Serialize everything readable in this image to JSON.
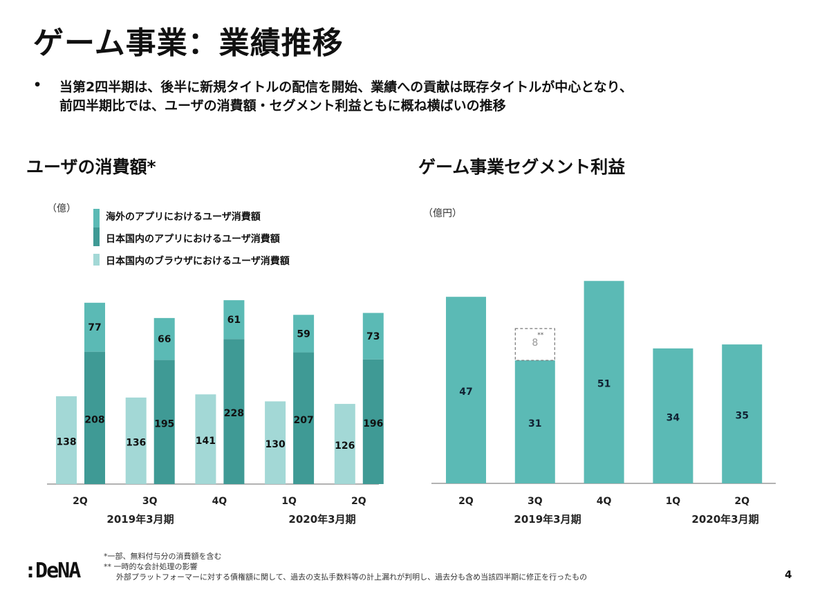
{
  "title": "ゲーム事業：業績推移",
  "bullet_symbol": "•",
  "summary_lines": [
    "当第2四半期は、後半に新規タイトルの配信を開始、業績への貢献は既存タイトルが中心となり、",
    "前四半期比では、ユーザの消費額・セグメント利益ともに概ね横ばいの推移"
  ],
  "colors": {
    "overseas_app": "#5bbab5",
    "domestic_app": "#3f9a95",
    "domestic_browser": "#a3d8d6",
    "profit": "#5bbab5"
  },
  "chart_data": [
    {
      "type": "bar",
      "title": "ユーザの消費額*",
      "unit": "（億）",
      "categories": [
        "2Q",
        "3Q",
        "4Q",
        "1Q",
        "2Q"
      ],
      "period_labels": [
        "2019年3月期",
        "2020年3月期"
      ],
      "legend": [
        "海外のアプリにおけるユーザ消費額",
        "日本国内のアプリにおけるユーザ消費額",
        "日本国内のブラウザにおけるユーザ消費額"
      ],
      "legend_placement": "top",
      "series": [
        {
          "name": "日本国内のブラウザにおけるユーザ消費額",
          "values": [
            138,
            136,
            141,
            130,
            126
          ]
        },
        {
          "name": "日本国内のアプリにおけるユーザ消費額",
          "values": [
            208,
            195,
            228,
            207,
            196
          ]
        },
        {
          "name": "海外のアプリにおけるユーザ消費額",
          "values": [
            77,
            66,
            61,
            59,
            73
          ]
        }
      ],
      "stacked_series": [
        "日本国内のアプリにおけるユーザ消費額",
        "海外のアプリにおけるユーザ消費額"
      ],
      "grid": false
    },
    {
      "type": "bar",
      "title": "ゲーム事業セグメント利益",
      "unit": "（億円）",
      "categories": [
        "2Q",
        "3Q",
        "4Q",
        "1Q",
        "2Q"
      ],
      "period_labels": [
        "2019年3月期",
        "2020年3月期"
      ],
      "values": [
        47,
        31,
        51,
        34,
        35
      ],
      "adjustment": {
        "category_index": 1,
        "value": 8,
        "label": "8",
        "marker": "**"
      },
      "grid": false
    }
  ],
  "footnotes": [
    "*一部、無料付与分の消費額を含む",
    "** 一時的な会計処理の影響",
    "外部プラットフォーマーに対する債権額に関して、過去の支払手数料等の計上漏れが判明し、過去分も含め当該四半期に修正を行ったもの"
  ],
  "logo": ":DeNA",
  "page_number": "4"
}
